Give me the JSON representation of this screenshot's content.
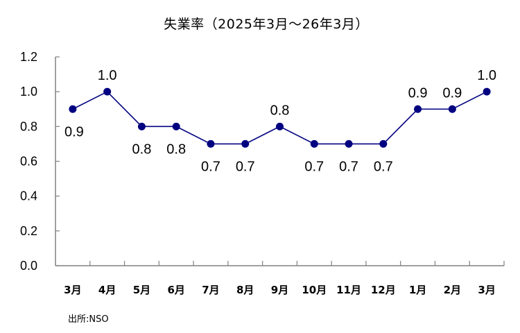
{
  "title": "失業率（2025年3月～26年3月）",
  "source": "出所:NSO",
  "colors": {
    "series": "#000080",
    "axis": "#808080",
    "text": "#000000",
    "background": "#ffffff"
  },
  "chart_data": {
    "type": "line",
    "title": "失業率（2025年3月～26年3月）",
    "xlabel": "",
    "ylabel": "",
    "categories": [
      "3月",
      "4月",
      "5月",
      "6月",
      "7月",
      "8月",
      "9月",
      "10月",
      "11月",
      "12月",
      "1月",
      "2月",
      "3月"
    ],
    "series": [
      {
        "name": "失業率",
        "values": [
          0.9,
          1.0,
          0.8,
          0.8,
          0.7,
          0.7,
          0.8,
          0.7,
          0.7,
          0.7,
          0.9,
          0.9,
          1.0
        ],
        "labels": [
          "0.9",
          "1.0",
          "0.8",
          "0.8",
          "0.7",
          "0.7",
          "0.8",
          "0.7",
          "0.7",
          "0.7",
          "0.9",
          "0.9",
          "1.0"
        ],
        "label_positions": [
          "below",
          "above",
          "below",
          "below",
          "below",
          "below",
          "above",
          "below",
          "below",
          "below",
          "above",
          "above",
          "above"
        ]
      }
    ],
    "ylim": [
      0.0,
      1.2
    ],
    "yticks": [
      "0.0",
      "0.2",
      "0.4",
      "0.6",
      "0.8",
      "1.0",
      "1.2"
    ],
    "grid": false,
    "legend": null,
    "annotations": [
      "出所:NSO"
    ]
  }
}
